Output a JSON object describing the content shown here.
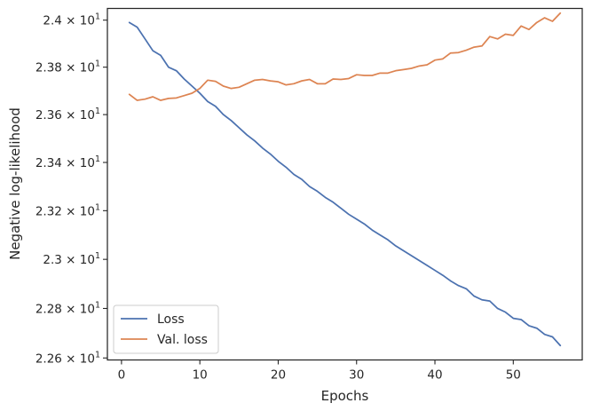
{
  "chart_data": {
    "type": "line",
    "title": "",
    "xlabel": "Epochs",
    "ylabel": "Negative log-likelihood",
    "xlim": [
      -1.8,
      58.8
    ],
    "ylim": [
      22.592,
      24.05
    ],
    "x_ticks": [
      0,
      10,
      20,
      30,
      40,
      50
    ],
    "x_tick_labels": [
      "0",
      "10",
      "20",
      "30",
      "40",
      "50"
    ],
    "y_ticks": [
      22.6,
      22.8,
      23.0,
      23.2,
      23.4,
      23.6,
      23.8,
      24.0
    ],
    "y_tick_mantissas": [
      "2.26",
      "2.28",
      "2.3",
      "2.32",
      "2.34",
      "2.36",
      "2.38",
      "2.4"
    ],
    "y_tick_base": "10",
    "y_tick_exponent": "1",
    "y_tick_separator": "×",
    "y_scale": "log",
    "grid": false,
    "legend_position": "lower-left",
    "colors": {
      "loss": "#4c72b0",
      "val_loss": "#dd8452",
      "axis": "#262626"
    },
    "x": [
      1,
      2,
      3,
      4,
      5,
      6,
      7,
      8,
      9,
      10,
      11,
      12,
      13,
      14,
      15,
      16,
      17,
      18,
      19,
      20,
      21,
      22,
      23,
      24,
      25,
      26,
      27,
      28,
      29,
      30,
      31,
      32,
      33,
      34,
      35,
      36,
      37,
      38,
      39,
      40,
      41,
      42,
      43,
      44,
      45,
      46,
      47,
      48,
      49,
      50,
      51,
      52,
      53,
      54,
      55,
      56
    ],
    "series": [
      {
        "name": "Loss",
        "color": "#4c72b0",
        "values": [
          23.99,
          23.97,
          23.92,
          23.87,
          23.85,
          23.8,
          23.785,
          23.75,
          23.72,
          23.69,
          23.655,
          23.635,
          23.6,
          23.575,
          23.545,
          23.515,
          23.49,
          23.46,
          23.435,
          23.405,
          23.38,
          23.35,
          23.33,
          23.3,
          23.28,
          23.255,
          23.235,
          23.21,
          23.185,
          23.165,
          23.145,
          23.12,
          23.1,
          23.08,
          23.055,
          23.035,
          23.015,
          22.995,
          22.975,
          22.955,
          22.935,
          22.912,
          22.893,
          22.88,
          22.85,
          22.835,
          22.83,
          22.8,
          22.785,
          22.76,
          22.755,
          22.73,
          22.72,
          22.695,
          22.685,
          22.65
        ]
      },
      {
        "name": "Val. loss",
        "color": "#dd8452",
        "values": [
          23.685,
          23.66,
          23.665,
          23.675,
          23.66,
          23.668,
          23.67,
          23.68,
          23.69,
          23.71,
          23.745,
          23.74,
          23.72,
          23.71,
          23.715,
          23.73,
          23.745,
          23.748,
          23.742,
          23.738,
          23.725,
          23.73,
          23.742,
          23.748,
          23.73,
          23.73,
          23.75,
          23.748,
          23.752,
          23.768,
          23.765,
          23.765,
          23.775,
          23.775,
          23.785,
          23.79,
          23.795,
          23.805,
          23.81,
          23.83,
          23.835,
          23.86,
          23.862,
          23.872,
          23.885,
          23.89,
          23.93,
          23.92,
          23.94,
          23.935,
          23.975,
          23.96,
          23.99,
          24.01,
          23.995,
          24.03
        ]
      }
    ]
  }
}
